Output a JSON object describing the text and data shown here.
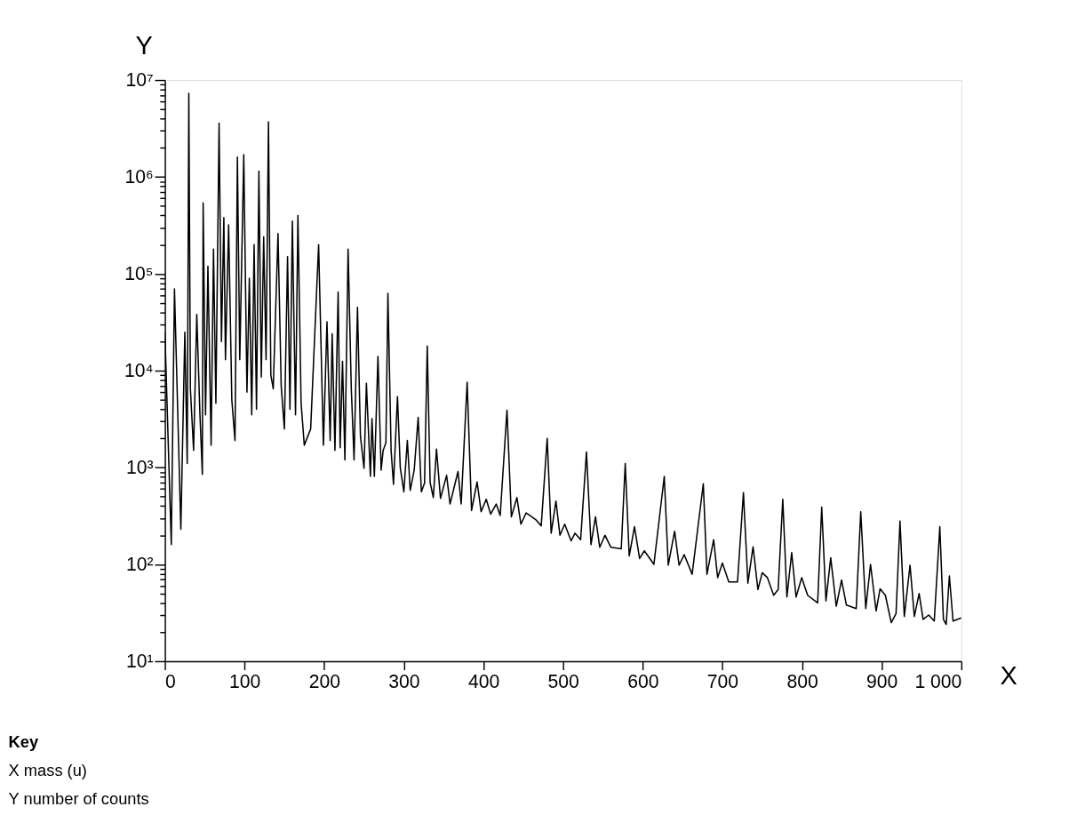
{
  "chart_data": {
    "type": "line",
    "xlabel": "X",
    "ylabel": "Y",
    "log": "y",
    "grid": false,
    "marker": "none",
    "line_style": "solid",
    "xlim": [
      0,
      1000
    ],
    "ylim": [
      10,
      10000000
    ],
    "xticks": [
      0,
      100,
      200,
      300,
      400,
      500,
      600,
      700,
      800,
      900,
      {
        "value": 1000,
        "label": "1 000"
      }
    ],
    "yticks": [
      {
        "value": 10,
        "label": "10¹"
      },
      {
        "value": 20,
        "label": null
      },
      {
        "value": 30,
        "label": null
      },
      {
        "value": 40,
        "label": null
      },
      {
        "value": 50,
        "label": null
      },
      {
        "value": 60,
        "label": null
      },
      {
        "value": 70,
        "label": null
      },
      {
        "value": 80,
        "label": null
      },
      {
        "value": 90,
        "label": null
      },
      {
        "value": 100,
        "label": "10²"
      },
      {
        "value": 200,
        "label": null
      },
      {
        "value": 300,
        "label": null
      },
      {
        "value": 400,
        "label": null
      },
      {
        "value": 500,
        "label": null
      },
      {
        "value": 600,
        "label": null
      },
      {
        "value": 700,
        "label": null
      },
      {
        "value": 800,
        "label": null
      },
      {
        "value": 900,
        "label": null
      },
      {
        "value": 1000,
        "label": "10³"
      },
      {
        "value": 2000,
        "label": null
      },
      {
        "value": 3000,
        "label": null
      },
      {
        "value": 4000,
        "label": null
      },
      {
        "value": 5000,
        "label": null
      },
      {
        "value": 6000,
        "label": null
      },
      {
        "value": 7000,
        "label": null
      },
      {
        "value": 8000,
        "label": null
      },
      {
        "value": 9000,
        "label": null
      },
      {
        "value": 10000,
        "label": "10⁴"
      },
      {
        "value": 20000,
        "label": null
      },
      {
        "value": 30000,
        "label": null
      },
      {
        "value": 40000,
        "label": null
      },
      {
        "value": 50000,
        "label": null
      },
      {
        "value": 60000,
        "label": null
      },
      {
        "value": 70000,
        "label": null
      },
      {
        "value": 80000,
        "label": null
      },
      {
        "value": 90000,
        "label": null
      },
      {
        "value": 100000,
        "label": "10⁵"
      },
      {
        "value": 200000,
        "label": null
      },
      {
        "value": 300000,
        "label": null
      },
      {
        "value": 400000,
        "label": null
      },
      {
        "value": 500000,
        "label": null
      },
      {
        "value": 600000,
        "label": null
      },
      {
        "value": 700000,
        "label": null
      },
      {
        "value": 800000,
        "label": null
      },
      {
        "value": 900000,
        "label": null
      },
      {
        "value": 1000000,
        "label": "10⁶"
      },
      {
        "value": 2000000,
        "label": null
      },
      {
        "value": 3000000,
        "label": null
      },
      {
        "value": 4000000,
        "label": null
      },
      {
        "value": 5000000,
        "label": null
      },
      {
        "value": 6000000,
        "label": null
      },
      {
        "value": 7000000,
        "label": null
      },
      {
        "value": 8000000,
        "label": null
      },
      {
        "value": 9000000,
        "label": null
      },
      {
        "value": 10000000,
        "label": "10⁷"
      }
    ],
    "annotations": [
      "Key",
      "X mass (u)",
      "Y number of counts"
    ],
    "series": [
      {
        "color": "#000000",
        "x": [
          0,
          8,
          12,
          20,
          25,
          28,
          30,
          32,
          36,
          40,
          44,
          47,
          48,
          51,
          54,
          58,
          61,
          64,
          68,
          71,
          74,
          76,
          80,
          84,
          88,
          91,
          94,
          99,
          103,
          106,
          109,
          112,
          115,
          118,
          121,
          124,
          127,
          130,
          133,
          136,
          142,
          146,
          150,
          154,
          157,
          160,
          164,
          167,
          171,
          175,
          183,
          193,
          199,
          203.5,
          207.5,
          210,
          213.5,
          217.5,
          220,
          223,
          226,
          230,
          234,
          237.5,
          241.8,
          245.5,
          250,
          253,
          258,
          260,
          263,
          267.5,
          271.5,
          274,
          277.5,
          280,
          284,
          287,
          292,
          295.5,
          300,
          304.4,
          308,
          313,
          318,
          322,
          326,
          329.4,
          333,
          337,
          341,
          346,
          353.7,
          358,
          368,
          372,
          379.5,
          385,
          392,
          397,
          403.5,
          409,
          416,
          421,
          429.5,
          435,
          442,
          447,
          453.6,
          465.5,
          472.5,
          480,
          485,
          491,
          496,
          502,
          510,
          515,
          522,
          529.3,
          535,
          540.6,
          546,
          552.5,
          560,
          573,
          578,
          583,
          589.6,
          596,
          602,
          614,
          627,
          632,
          640,
          645.6,
          652,
          662,
          676,
          680.6,
          689,
          694,
          700,
          708,
          719,
          726.4,
          732,
          738.5,
          744.6,
          750,
          756.5,
          764.4,
          770,
          775.8,
          781,
          787,
          792.5,
          799.6,
          807,
          819.6,
          824.7,
          830,
          836,
          843,
          849.6,
          855.7,
          868,
          873.7,
          880,
          886,
          893,
          898,
          904.6,
          912,
          918,
          923,
          928.4,
          935.6,
          941,
          947,
          952,
          959,
          966,
          973,
          977.5,
          981,
          985,
          989.6,
          1000
        ],
        "values": [
          25000,
          160,
          70000,
          230,
          25000,
          1100,
          7300000,
          6500,
          1500,
          38000,
          3500,
          850,
          540000,
          3500,
          120000,
          1700,
          180000,
          4600,
          3600000,
          20000,
          380000,
          13000,
          320000,
          5000,
          1900,
          1600000,
          13000,
          1700000,
          6000,
          90000,
          3500,
          200000,
          4000,
          1150000,
          8600,
          240000,
          13000,
          3700000,
          9000,
          6500,
          260000,
          7000,
          2500,
          150000,
          4000,
          350000,
          3500,
          400000,
          4600,
          1700,
          2500,
          200000,
          1700,
          32000,
          1900,
          24000,
          1500,
          65000,
          1600,
          12500,
          1200,
          180000,
          6600,
          1200,
          45000,
          2100,
          980,
          7400,
          810,
          3200,
          810,
          14000,
          940,
          1500,
          1800,
          63000,
          1500,
          670,
          5400,
          1000,
          560,
          1900,
          580,
          940,
          3300,
          560,
          690,
          18000,
          700,
          490,
          1550,
          480,
          830,
          420,
          910,
          420,
          7600,
          360,
          710,
          350,
          470,
          330,
          420,
          320,
          3900,
          310,
          490,
          260,
          340,
          290,
          250,
          2000,
          210,
          450,
          200,
          260,
          175,
          210,
          180,
          1450,
          160,
          310,
          150,
          200,
          150,
          145,
          1100,
          122,
          245,
          115,
          138,
          100,
          810,
          98,
          220,
          98,
          126,
          79,
          680,
          79,
          180,
          73,
          103,
          66,
          66,
          550,
          64,
          152,
          55,
          82,
          73,
          48,
          55,
          470,
          46,
          132,
          46,
          73,
          48,
          40,
          390,
          42,
          117,
          37,
          69,
          38,
          35,
          350,
          35,
          100,
          33,
          56,
          48,
          25,
          31,
          280,
          29,
          98,
          29,
          50,
          27,
          30,
          26,
          245,
          27,
          24,
          76,
          26,
          28
        ]
      }
    ]
  }
}
